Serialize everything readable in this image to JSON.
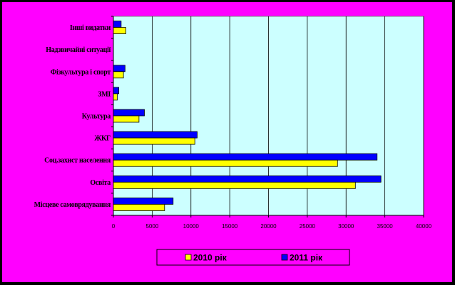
{
  "chart_data": {
    "type": "bar",
    "orientation": "horizontal",
    "categories": [
      "Місцеве самоврядування",
      "Освіта",
      "Соц.захист населення",
      "ЖКГ",
      "Культура",
      "ЗМІ",
      "Фізкультура і спорт",
      "Надзвичайні ситуації",
      "Інші видатки"
    ],
    "series": [
      {
        "name": "2010 рік",
        "color": "#ffff00",
        "values": [
          6600,
          31200,
          28900,
          10500,
          3300,
          500,
          1300,
          0,
          1600
        ]
      },
      {
        "name": "2011 рік",
        "color": "#0000ff",
        "values": [
          7700,
          34500,
          34000,
          10800,
          4000,
          700,
          1500,
          0,
          1000
        ]
      }
    ],
    "xlim": [
      0,
      40000
    ],
    "xticks": [
      0,
      5000,
      10000,
      15000,
      20000,
      25000,
      30000,
      35000,
      40000
    ],
    "grid": true,
    "plot_background": "#ccffff",
    "legend_placement": "bottom"
  }
}
